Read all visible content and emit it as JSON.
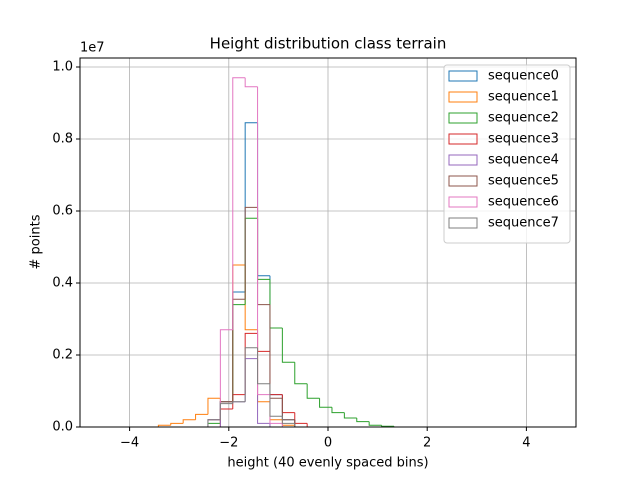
{
  "chart_data": {
    "type": "histogram",
    "title": "Height distribution class terrain",
    "xlabel": "height (40 evenly spaced bins)",
    "ylabel": "# points",
    "y_offset_label": "1e7",
    "xlim": [
      -5,
      5
    ],
    "ylim": [
      0,
      1.025
    ],
    "grid": true,
    "legend": "upper right",
    "histtype": "step",
    "xticks": [
      {
        "value": -4,
        "label": "−4"
      },
      {
        "value": -2,
        "label": "−2"
      },
      0,
      2,
      4
    ],
    "yticks": [
      {
        "value": 0,
        "label": "0.0"
      },
      {
        "value": 0.2,
        "label": "0.2"
      },
      {
        "value": 0.4,
        "label": "0.4"
      },
      {
        "value": 0.6,
        "label": "0.6"
      },
      {
        "value": 0.8,
        "label": "0.8"
      },
      {
        "value": 1.0,
        "label": "1.0"
      }
    ],
    "bins": [
      -4.92,
      -4.67,
      -4.42,
      -4.17,
      -3.92,
      -3.67,
      -3.42,
      -3.17,
      -2.92,
      -2.67,
      -2.42,
      -2.17,
      -1.92,
      -1.67,
      -1.42,
      -1.17,
      -0.92,
      -0.67,
      -0.42,
      -0.17,
      0.08,
      0.33,
      0.58,
      0.83,
      1.08,
      1.33,
      1.58,
      1.83,
      2.08,
      2.33,
      2.58,
      2.83,
      3.08,
      3.33,
      3.58,
      3.83,
      4.08,
      4.33,
      4.58,
      4.83,
      5.08
    ],
    "series": [
      {
        "name": "sequence0",
        "color": "#1f77b4",
        "values": [
          0,
          0,
          0,
          0,
          0,
          0,
          0,
          0,
          0,
          0,
          0.02,
          0.07,
          0.375,
          0.845,
          0.42,
          0.09,
          0.02,
          0,
          0,
          0,
          0,
          0,
          0,
          0,
          0,
          0,
          0,
          0,
          0,
          0,
          0,
          0,
          0,
          0,
          0,
          0,
          0,
          0,
          0,
          0
        ]
      },
      {
        "name": "sequence1",
        "color": "#ff7f0e",
        "values": [
          0,
          0,
          0,
          0,
          0,
          0,
          0.005,
          0.01,
          0.02,
          0.035,
          0.08,
          0.07,
          0.45,
          0.27,
          0.07,
          0.02,
          0.005,
          0,
          0,
          0,
          0,
          0,
          0,
          0,
          0,
          0,
          0,
          0,
          0,
          0,
          0,
          0,
          0,
          0,
          0,
          0,
          0,
          0,
          0,
          0
        ]
      },
      {
        "name": "sequence2",
        "color": "#2ca02c",
        "values": [
          0,
          0,
          0,
          0,
          0,
          0,
          0,
          0,
          0,
          0,
          0.01,
          0.07,
          0.34,
          0.58,
          0.41,
          0.275,
          0.18,
          0.12,
          0.08,
          0.055,
          0.04,
          0.025,
          0.015,
          0.005,
          0.002,
          0,
          0,
          0,
          0,
          0,
          0,
          0,
          0,
          0,
          0,
          0,
          0,
          0,
          0,
          0
        ]
      },
      {
        "name": "sequence3",
        "color": "#d62728",
        "values": [
          0,
          0,
          0,
          0,
          0,
          0,
          0,
          0,
          0,
          0,
          0,
          0.05,
          0.09,
          0.26,
          0.21,
          0.09,
          0.04,
          0.01,
          0,
          0,
          0,
          0,
          0,
          0,
          0,
          0,
          0,
          0,
          0,
          0,
          0,
          0,
          0,
          0,
          0,
          0,
          0,
          0,
          0,
          0
        ]
      },
      {
        "name": "sequence4",
        "color": "#9467bd",
        "values": [
          0,
          0,
          0,
          0,
          0,
          0,
          0,
          0,
          0,
          0,
          0,
          0.07,
          0.07,
          0.19,
          0.01,
          0,
          0,
          0,
          0,
          0,
          0,
          0,
          0,
          0,
          0,
          0,
          0,
          0,
          0,
          0,
          0,
          0,
          0,
          0,
          0,
          0,
          0,
          0,
          0,
          0
        ]
      },
      {
        "name": "sequence5",
        "color": "#8c564b",
        "values": [
          0,
          0,
          0,
          0,
          0,
          0,
          0,
          0,
          0,
          0,
          0.02,
          0.07,
          0.355,
          0.61,
          0.34,
          0.08,
          0.02,
          0,
          0,
          0,
          0,
          0,
          0,
          0,
          0,
          0,
          0,
          0,
          0,
          0,
          0,
          0,
          0,
          0,
          0,
          0,
          0,
          0,
          0,
          0
        ]
      },
      {
        "name": "sequence6",
        "color": "#e377c2",
        "values": [
          0,
          0,
          0,
          0,
          0,
          0,
          0,
          0,
          0,
          0,
          0.02,
          0.27,
          0.97,
          0.945,
          0.09,
          0.01,
          0,
          0,
          0,
          0,
          0,
          0,
          0,
          0,
          0,
          0,
          0,
          0,
          0,
          0,
          0,
          0,
          0,
          0,
          0,
          0,
          0,
          0,
          0,
          0
        ]
      },
      {
        "name": "sequence7",
        "color": "#7f7f7f",
        "values": [
          0,
          0,
          0,
          0,
          0,
          0,
          0,
          0,
          0,
          0,
          0.02,
          0.065,
          0.07,
          0.22,
          0.12,
          0.03,
          0.01,
          0,
          0,
          0,
          0,
          0,
          0,
          0,
          0,
          0,
          0,
          0,
          0,
          0,
          0,
          0,
          0,
          0,
          0,
          0,
          0,
          0,
          0,
          0
        ]
      }
    ]
  }
}
